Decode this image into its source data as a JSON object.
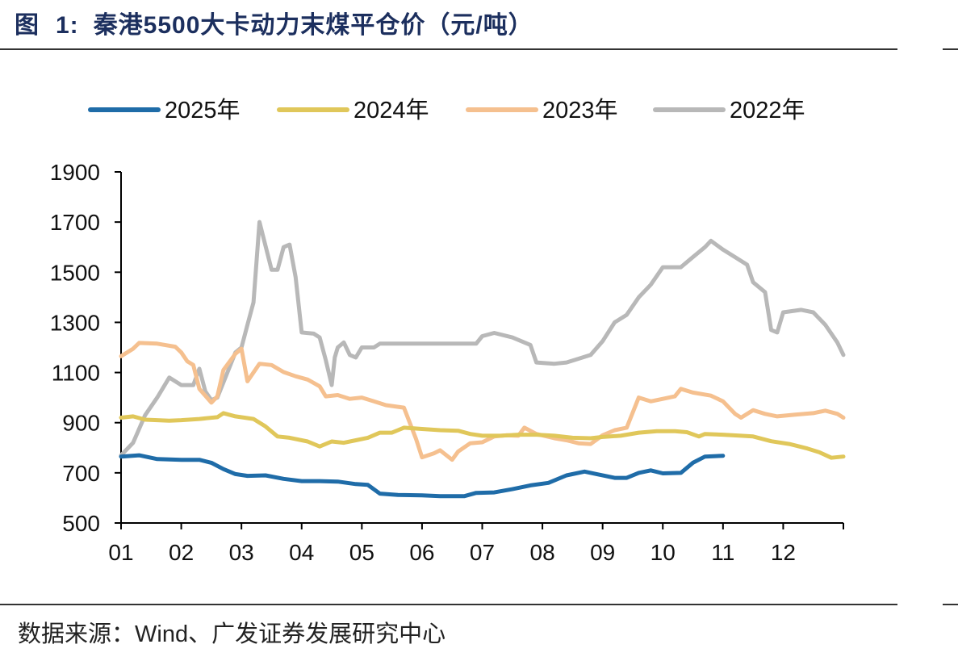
{
  "header": {
    "figure_label": "图",
    "figure_number": "1:",
    "title": "秦港5500大卡动力末煤平仓价（元/吨）"
  },
  "footer": {
    "source": "数据来源：Wind、广发证券发展研究中心"
  },
  "chart_data": {
    "type": "line",
    "title": "秦港5500大卡动力末煤平仓价（元/吨）",
    "xlabel": "",
    "ylabel": "",
    "x_ticks": [
      "01",
      "02",
      "03",
      "04",
      "05",
      "06",
      "07",
      "08",
      "09",
      "10",
      "11",
      "12"
    ],
    "x_range": [
      1,
      13
    ],
    "y_ticks": [
      500,
      700,
      900,
      1100,
      1300,
      1500,
      1700,
      1900
    ],
    "ylim": [
      500,
      1900
    ],
    "grid": false,
    "legend_position": "top",
    "series": [
      {
        "name": "2025年",
        "color": "#1f6ca8",
        "points": [
          [
            1.0,
            765
          ],
          [
            1.3,
            770
          ],
          [
            1.6,
            755
          ],
          [
            2.0,
            752
          ],
          [
            2.3,
            752
          ],
          [
            2.5,
            740
          ],
          [
            2.7,
            715
          ],
          [
            2.9,
            695
          ],
          [
            3.1,
            688
          ],
          [
            3.4,
            690
          ],
          [
            3.7,
            676
          ],
          [
            4.0,
            667
          ],
          [
            4.3,
            667
          ],
          [
            4.6,
            665
          ],
          [
            4.9,
            655
          ],
          [
            5.1,
            652
          ],
          [
            5.3,
            617
          ],
          [
            5.6,
            612
          ],
          [
            6.0,
            610
          ],
          [
            6.3,
            607
          ],
          [
            6.7,
            607
          ],
          [
            6.9,
            620
          ],
          [
            7.2,
            622
          ],
          [
            7.5,
            635
          ],
          [
            7.8,
            650
          ],
          [
            8.1,
            660
          ],
          [
            8.4,
            690
          ],
          [
            8.7,
            705
          ],
          [
            8.9,
            695
          ],
          [
            9.2,
            680
          ],
          [
            9.4,
            680
          ],
          [
            9.6,
            700
          ],
          [
            9.8,
            710
          ],
          [
            10.0,
            698
          ],
          [
            10.3,
            700
          ],
          [
            10.5,
            740
          ],
          [
            10.7,
            765
          ],
          [
            11.0,
            768
          ]
        ]
      },
      {
        "name": "2024年",
        "color": "#e0c75a",
        "points": [
          [
            1.0,
            920
          ],
          [
            1.2,
            925
          ],
          [
            1.4,
            912
          ],
          [
            1.8,
            908
          ],
          [
            2.0,
            910
          ],
          [
            2.3,
            915
          ],
          [
            2.6,
            922
          ],
          [
            2.7,
            938
          ],
          [
            2.9,
            925
          ],
          [
            3.2,
            915
          ],
          [
            3.4,
            885
          ],
          [
            3.6,
            845
          ],
          [
            3.8,
            840
          ],
          [
            4.1,
            825
          ],
          [
            4.3,
            805
          ],
          [
            4.5,
            825
          ],
          [
            4.7,
            820
          ],
          [
            4.9,
            830
          ],
          [
            5.1,
            840
          ],
          [
            5.3,
            860
          ],
          [
            5.5,
            860
          ],
          [
            5.6,
            870
          ],
          [
            5.7,
            880
          ],
          [
            6.0,
            875
          ],
          [
            6.3,
            870
          ],
          [
            6.6,
            868
          ],
          [
            6.8,
            855
          ],
          [
            7.0,
            848
          ],
          [
            7.3,
            848
          ],
          [
            7.6,
            852
          ],
          [
            7.9,
            852
          ],
          [
            8.2,
            848
          ],
          [
            8.5,
            840
          ],
          [
            8.8,
            838
          ],
          [
            9.0,
            843
          ],
          [
            9.3,
            848
          ],
          [
            9.6,
            860
          ],
          [
            9.9,
            866
          ],
          [
            10.2,
            866
          ],
          [
            10.4,
            862
          ],
          [
            10.6,
            845
          ],
          [
            10.7,
            855
          ],
          [
            11.0,
            852
          ],
          [
            11.3,
            848
          ],
          [
            11.5,
            845
          ],
          [
            11.8,
            826
          ],
          [
            12.1,
            815
          ],
          [
            12.4,
            797
          ],
          [
            12.6,
            782
          ],
          [
            12.8,
            760
          ],
          [
            13.0,
            765
          ]
        ]
      },
      {
        "name": "2023年",
        "color": "#f5c08f",
        "points": [
          [
            1.0,
            1165
          ],
          [
            1.2,
            1195
          ],
          [
            1.3,
            1218
          ],
          [
            1.6,
            1215
          ],
          [
            1.9,
            1203
          ],
          [
            2.0,
            1180
          ],
          [
            2.1,
            1145
          ],
          [
            2.2,
            1130
          ],
          [
            2.3,
            1035
          ],
          [
            2.5,
            980
          ],
          [
            2.6,
            1005
          ],
          [
            2.7,
            1110
          ],
          [
            2.9,
            1175
          ],
          [
            3.0,
            1195
          ],
          [
            3.1,
            1065
          ],
          [
            3.3,
            1135
          ],
          [
            3.5,
            1130
          ],
          [
            3.7,
            1102
          ],
          [
            3.9,
            1085
          ],
          [
            4.1,
            1072
          ],
          [
            4.3,
            1045
          ],
          [
            4.4,
            1005
          ],
          [
            4.6,
            1010
          ],
          [
            4.8,
            995
          ],
          [
            5.0,
            1000
          ],
          [
            5.2,
            985
          ],
          [
            5.4,
            970
          ],
          [
            5.7,
            960
          ],
          [
            5.9,
            835
          ],
          [
            6.0,
            762
          ],
          [
            6.2,
            778
          ],
          [
            6.3,
            790
          ],
          [
            6.5,
            752
          ],
          [
            6.6,
            785
          ],
          [
            6.8,
            818
          ],
          [
            7.0,
            822
          ],
          [
            7.2,
            845
          ],
          [
            7.4,
            850
          ],
          [
            7.6,
            848
          ],
          [
            7.7,
            880
          ],
          [
            7.9,
            855
          ],
          [
            8.2,
            838
          ],
          [
            8.4,
            830
          ],
          [
            8.6,
            818
          ],
          [
            8.8,
            815
          ],
          [
            9.0,
            850
          ],
          [
            9.2,
            870
          ],
          [
            9.4,
            880
          ],
          [
            9.6,
            1000
          ],
          [
            9.8,
            985
          ],
          [
            10.0,
            995
          ],
          [
            10.2,
            1005
          ],
          [
            10.3,
            1035
          ],
          [
            10.5,
            1020
          ],
          [
            10.8,
            1008
          ],
          [
            11.0,
            985
          ],
          [
            11.2,
            935
          ],
          [
            11.3,
            920
          ],
          [
            11.5,
            950
          ],
          [
            11.7,
            935
          ],
          [
            11.9,
            925
          ],
          [
            12.2,
            932
          ],
          [
            12.5,
            938
          ],
          [
            12.7,
            948
          ],
          [
            12.9,
            935
          ],
          [
            13.0,
            920
          ]
        ]
      },
      {
        "name": "2022年",
        "color": "#b8b8b8",
        "points": [
          [
            1.0,
            770
          ],
          [
            1.2,
            820
          ],
          [
            1.4,
            930
          ],
          [
            1.6,
            1000
          ],
          [
            1.8,
            1080
          ],
          [
            2.0,
            1050
          ],
          [
            2.2,
            1050
          ],
          [
            2.3,
            1115
          ],
          [
            2.4,
            1025
          ],
          [
            2.5,
            990
          ],
          [
            2.6,
            1000
          ],
          [
            2.7,
            1060
          ],
          [
            2.9,
            1180
          ],
          [
            3.0,
            1200
          ],
          [
            3.1,
            1290
          ],
          [
            3.2,
            1380
          ],
          [
            3.3,
            1700
          ],
          [
            3.5,
            1510
          ],
          [
            3.6,
            1510
          ],
          [
            3.7,
            1600
          ],
          [
            3.8,
            1610
          ],
          [
            3.9,
            1480
          ],
          [
            4.0,
            1260
          ],
          [
            4.2,
            1255
          ],
          [
            4.3,
            1240
          ],
          [
            4.4,
            1150
          ],
          [
            4.5,
            1050
          ],
          [
            4.55,
            1160
          ],
          [
            4.6,
            1200
          ],
          [
            4.7,
            1220
          ],
          [
            4.8,
            1170
          ],
          [
            4.9,
            1160
          ],
          [
            5.0,
            1200
          ],
          [
            5.2,
            1200
          ],
          [
            5.3,
            1215
          ],
          [
            6.0,
            1215
          ],
          [
            6.9,
            1215
          ],
          [
            7.0,
            1245
          ],
          [
            7.2,
            1258
          ],
          [
            7.5,
            1240
          ],
          [
            7.8,
            1210
          ],
          [
            7.9,
            1140
          ],
          [
            8.2,
            1135
          ],
          [
            8.4,
            1140
          ],
          [
            8.6,
            1155
          ],
          [
            8.8,
            1170
          ],
          [
            9.0,
            1225
          ],
          [
            9.2,
            1300
          ],
          [
            9.4,
            1330
          ],
          [
            9.6,
            1400
          ],
          [
            9.8,
            1450
          ],
          [
            10.0,
            1520
          ],
          [
            10.3,
            1520
          ],
          [
            10.5,
            1560
          ],
          [
            10.7,
            1600
          ],
          [
            10.8,
            1625
          ],
          [
            11.0,
            1590
          ],
          [
            11.2,
            1560
          ],
          [
            11.4,
            1530
          ],
          [
            11.5,
            1460
          ],
          [
            11.7,
            1420
          ],
          [
            11.8,
            1270
          ],
          [
            11.9,
            1260
          ],
          [
            12.0,
            1340
          ],
          [
            12.3,
            1350
          ],
          [
            12.5,
            1340
          ],
          [
            12.7,
            1290
          ],
          [
            12.9,
            1220
          ],
          [
            13.0,
            1170
          ]
        ]
      }
    ]
  }
}
